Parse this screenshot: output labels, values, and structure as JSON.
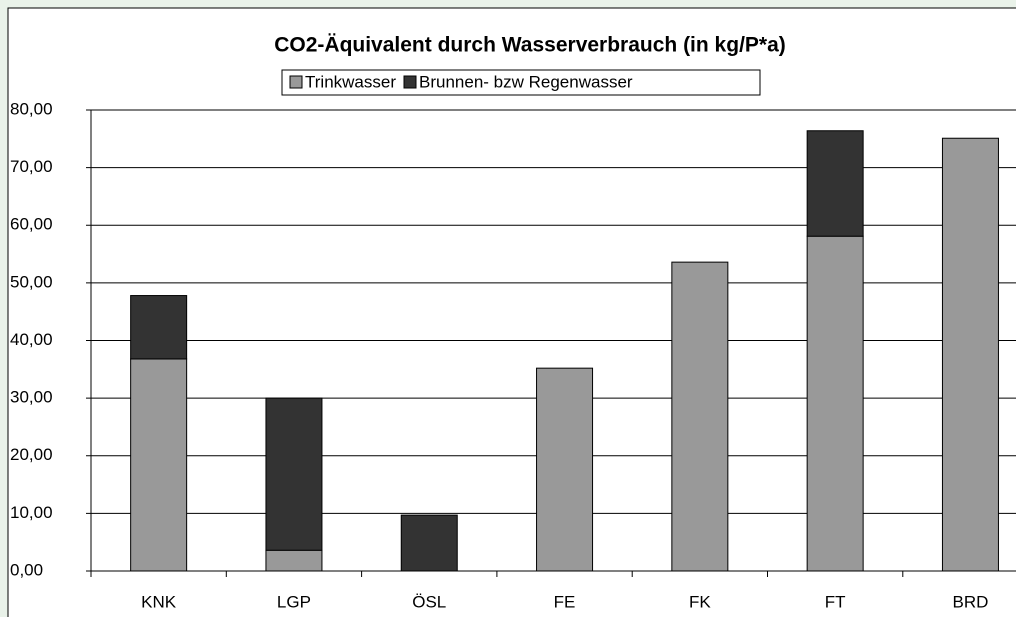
{
  "chart_data": {
    "type": "stacked_bar",
    "title": "CO2-Äquivalent durch Wasserverbrauch (in kg/P*a)",
    "categories": [
      "KNK",
      "LGP",
      "ÖSL",
      "FE",
      "FK",
      "FT",
      "BRD"
    ],
    "series": [
      {
        "name": "Trinkwasser",
        "color": "#999999",
        "values": [
          36.8,
          3.6,
          0,
          35.2,
          53.6,
          58.1,
          75.1
        ]
      },
      {
        "name": "Brunnen- bzw Regenwasser",
        "color": "#333333",
        "values": [
          11.0,
          26.4,
          9.7,
          0,
          0,
          18.3,
          0
        ]
      }
    ],
    "ylim": [
      0,
      80
    ],
    "yticks": [
      {
        "value": 0,
        "label": "0,00"
      },
      {
        "value": 10,
        "label": "10,00"
      },
      {
        "value": 20,
        "label": "20,00"
      },
      {
        "value": 30,
        "label": "30,00"
      },
      {
        "value": 40,
        "label": "40,00"
      },
      {
        "value": 50,
        "label": "50,00"
      },
      {
        "value": 60,
        "label": "60,00"
      },
      {
        "value": 70,
        "label": "70,00"
      },
      {
        "value": 80,
        "label": "80,00"
      }
    ],
    "grid": true,
    "legend": "top"
  }
}
